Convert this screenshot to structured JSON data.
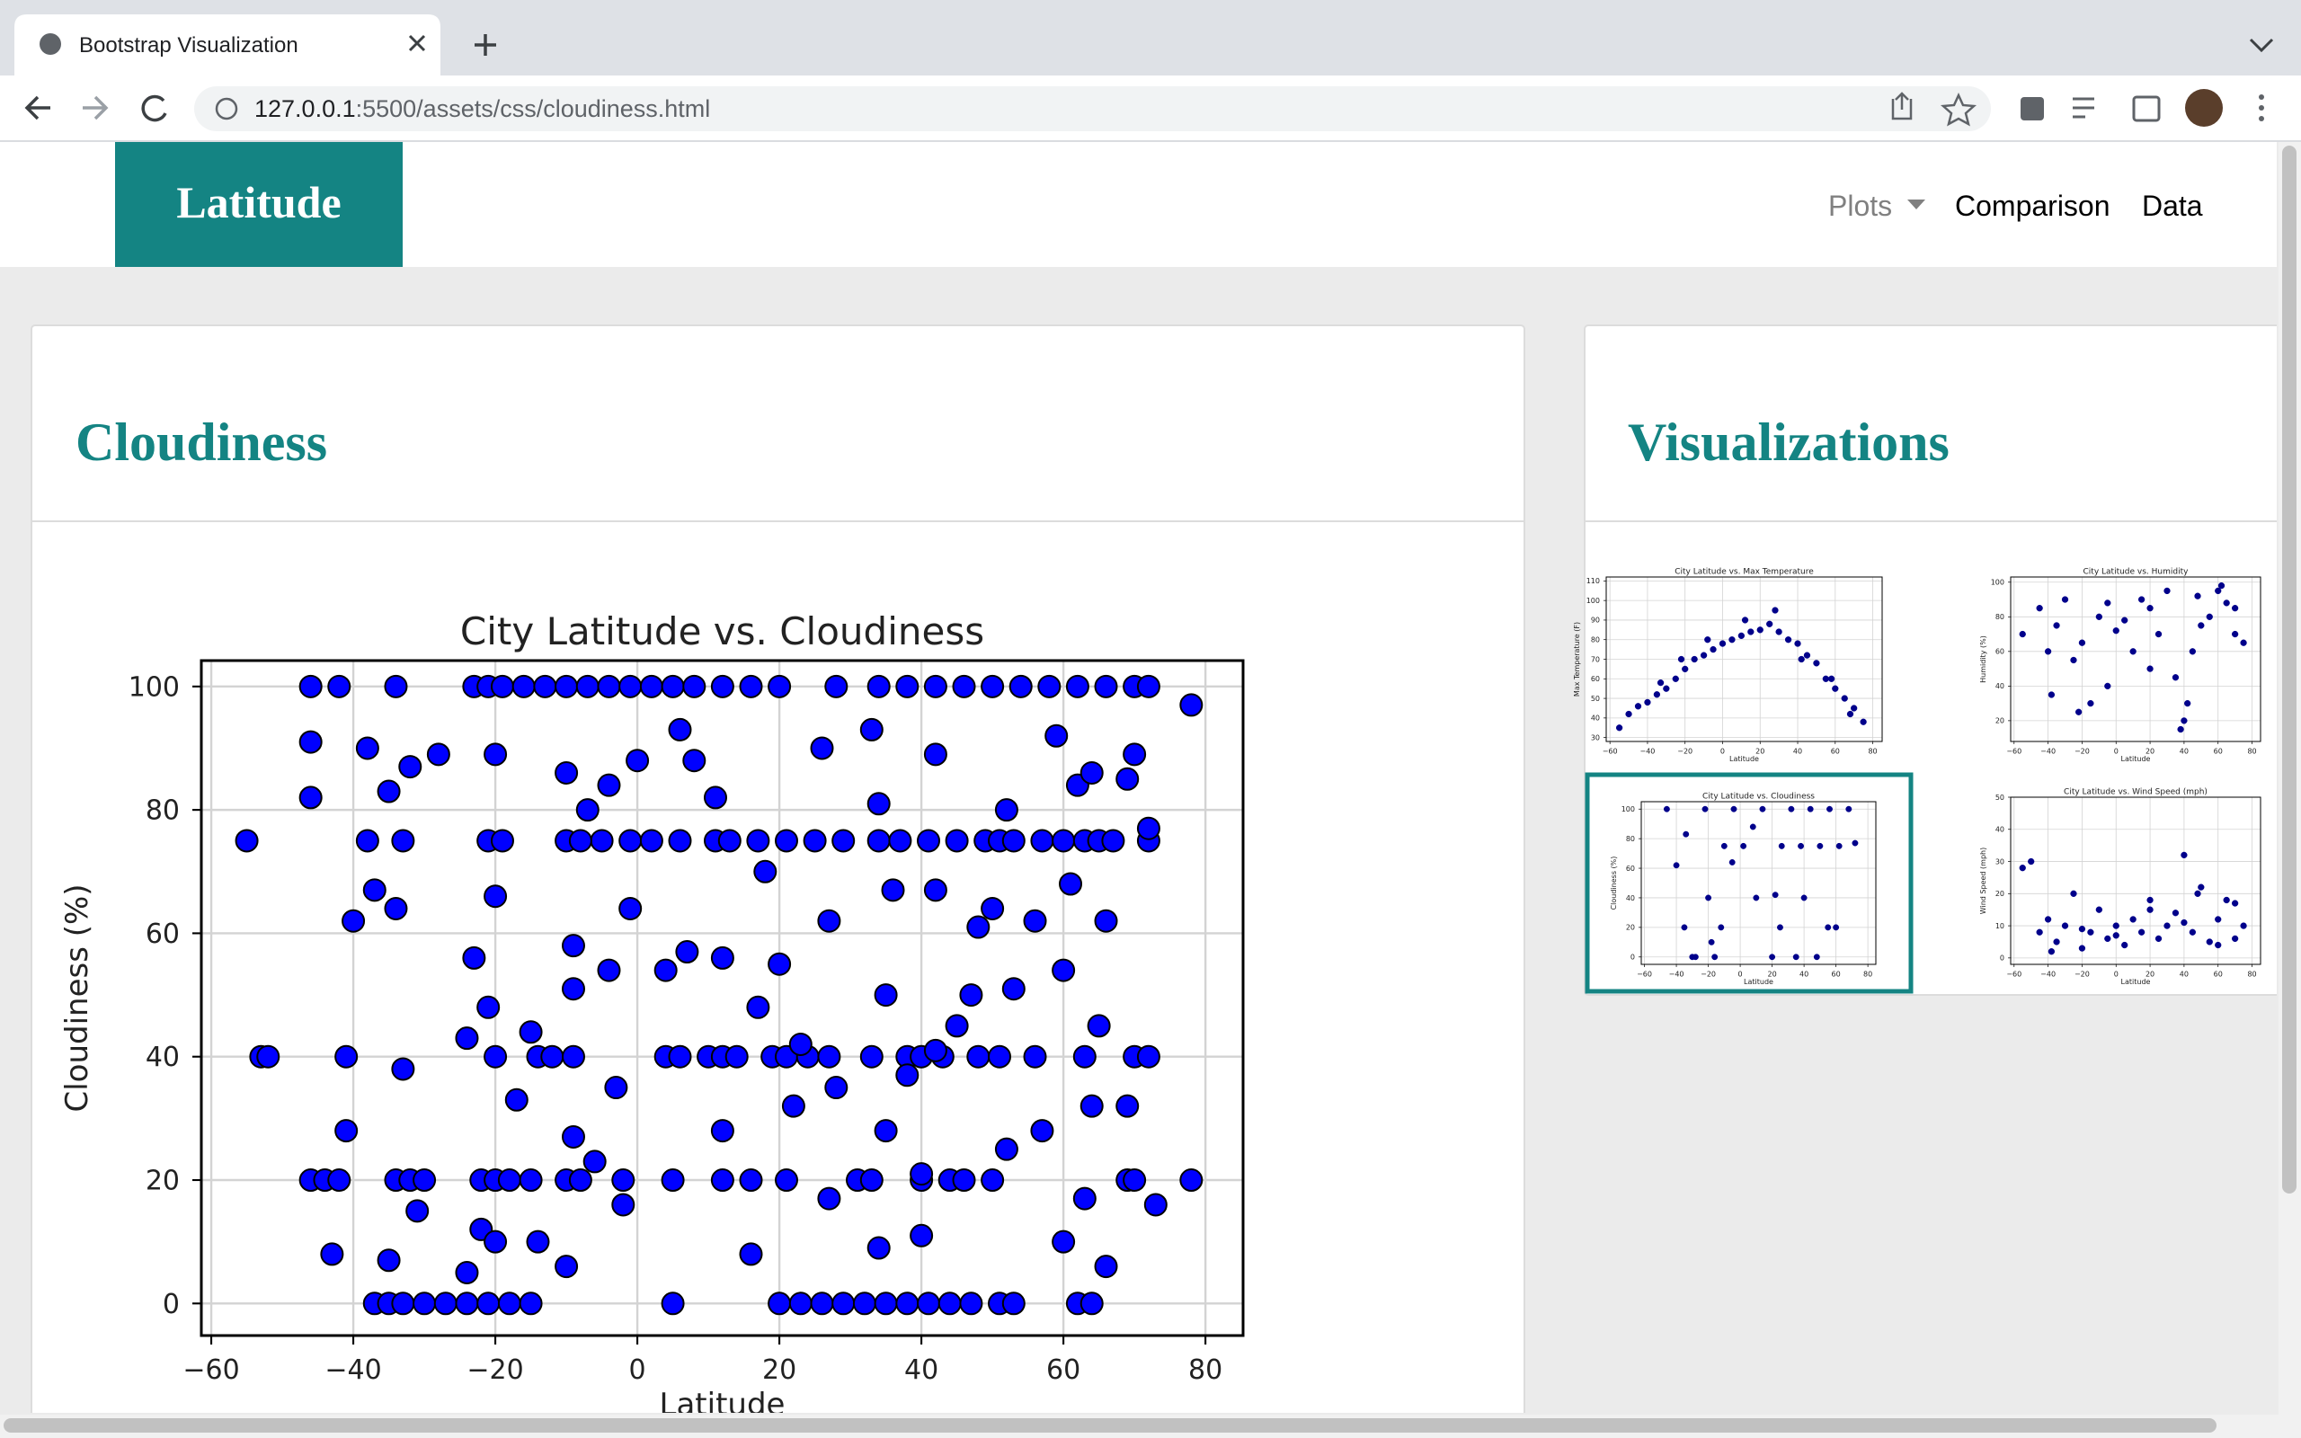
{
  "browser": {
    "tab_title": "Bootstrap Visualization",
    "url": {
      "host": "127.0.0.1",
      "path": ":5500/assets/css/cloudiness.html"
    }
  },
  "navbar": {
    "brand": "Latitude",
    "links": [
      "Plots",
      "Comparison",
      "Data"
    ]
  },
  "main_panel": {
    "heading": "Cloudiness"
  },
  "side_panel": {
    "heading": "Visualizations"
  },
  "chart_data": [
    {
      "type": "scatter",
      "title": "City Latitude vs. Cloudiness",
      "x_label": "Latitude",
      "y_label": "Cloudiness (%)",
      "color": "#0000ff",
      "grid": true,
      "xlim": [
        -61.4,
        85.3
      ],
      "ylim": [
        -5.2,
        104.2
      ],
      "xticks": [
        {
          "value": -60,
          "label": "−60"
        },
        {
          "value": -40,
          "label": "−40"
        },
        {
          "value": -20,
          "label": "−20"
        },
        0,
        20,
        40,
        60,
        80
      ],
      "yticks": [
        0,
        20,
        40,
        60,
        80,
        100
      ],
      "x": [
        -46,
        -42,
        -34,
        -23,
        -21,
        -19,
        -16,
        -13,
        -10,
        -7,
        -4,
        -1,
        2,
        5,
        8,
        12,
        16,
        20,
        28,
        34,
        38,
        42,
        46,
        50,
        54,
        58,
        62,
        66,
        70,
        72,
        -37,
        -35,
        -33,
        -30,
        -27,
        -24,
        -21,
        -18,
        -15,
        5,
        20,
        23,
        26,
        29,
        32,
        35,
        38,
        41,
        44,
        47,
        51,
        53,
        62,
        64,
        -55,
        -38,
        -33,
        -21,
        -19,
        -10,
        -5,
        -1,
        2,
        6,
        11,
        13,
        17,
        21,
        25,
        29,
        34,
        37,
        41,
        45,
        49,
        51,
        53,
        57,
        60,
        63,
        65,
        67,
        72,
        -8,
        -46,
        -44,
        -42,
        -34,
        -32,
        -30,
        -22,
        -20,
        -18,
        -15,
        -10,
        -8,
        -2,
        5,
        12,
        16,
        21,
        31,
        33,
        40,
        44,
        46,
        50,
        69,
        70,
        78,
        -53,
        -52,
        -41,
        -20,
        -14,
        -12,
        -9,
        4,
        6,
        10,
        12,
        14,
        19,
        21,
        24,
        27,
        33,
        38,
        40,
        43,
        48,
        51,
        56,
        63,
        70,
        72,
        -46,
        -46,
        -38,
        -35,
        -32,
        -28,
        -34,
        -37,
        -40,
        -41,
        -43,
        -35,
        -33,
        -31,
        -24,
        -23,
        -21,
        -20,
        -20,
        -17,
        -22,
        -20,
        -24,
        -15,
        -14,
        -10,
        -9,
        -9,
        -9,
        -6,
        -3,
        -4,
        -1,
        -2,
        -10,
        -7,
        -4,
        0,
        4,
        6,
        8,
        7,
        11,
        12,
        12,
        17,
        16,
        18,
        20,
        23,
        22,
        26,
        27,
        28,
        27,
        33,
        34,
        36,
        35,
        35,
        34,
        38,
        40,
        40,
        42,
        42,
        42,
        45,
        47,
        48,
        50,
        52,
        52,
        53,
        56,
        57,
        60,
        61,
        59,
        62,
        64,
        66,
        65,
        64,
        63,
        60,
        66,
        69,
        70,
        69,
        73,
        78,
        72
      ],
      "values": [
        100,
        100,
        100,
        100,
        100,
        100,
        100,
        100,
        100,
        100,
        100,
        100,
        100,
        100,
        100,
        100,
        100,
        100,
        100,
        100,
        100,
        100,
        100,
        100,
        100,
        100,
        100,
        100,
        100,
        100,
        0,
        0,
        0,
        0,
        0,
        0,
        0,
        0,
        0,
        0,
        0,
        0,
        0,
        0,
        0,
        0,
        0,
        0,
        0,
        0,
        0,
        0,
        0,
        0,
        75,
        75,
        75,
        75,
        75,
        75,
        75,
        75,
        75,
        75,
        75,
        75,
        75,
        75,
        75,
        75,
        75,
        75,
        75,
        75,
        75,
        75,
        75,
        75,
        75,
        75,
        75,
        75,
        75,
        75,
        20,
        20,
        20,
        20,
        20,
        20,
        20,
        20,
        20,
        20,
        20,
        20,
        20,
        20,
        20,
        20,
        20,
        20,
        20,
        20,
        20,
        20,
        20,
        20,
        20,
        20,
        40,
        40,
        40,
        40,
        40,
        40,
        40,
        40,
        40,
        40,
        40,
        40,
        40,
        40,
        40,
        40,
        40,
        40,
        40,
        40,
        40,
        40,
        40,
        40,
        40,
        40,
        91,
        82,
        90,
        83,
        87,
        89,
        64,
        67,
        62,
        28,
        8,
        7,
        38,
        15,
        43,
        56,
        48,
        89,
        66,
        33,
        12,
        10,
        5,
        44,
        10,
        6,
        27,
        51,
        58,
        23,
        35,
        54,
        64,
        16,
        86,
        80,
        84,
        88,
        54,
        93,
        88,
        57,
        82,
        56,
        28,
        48,
        8,
        70,
        55,
        42,
        32,
        90,
        62,
        35,
        17,
        93,
        81,
        67,
        50,
        28,
        9,
        37,
        21,
        11,
        89,
        67,
        41,
        45,
        50,
        61,
        64,
        25,
        80,
        51,
        62,
        28,
        54,
        68,
        92,
        84,
        86,
        62,
        45,
        32,
        17,
        10,
        6,
        85,
        89,
        32,
        16,
        97,
        77
      ]
    },
    {
      "type": "scatter",
      "title": "City Latitude vs. Max Temperature",
      "x_label": "Latitude",
      "y_label": "Max Temperature (F)",
      "color": "#00008b",
      "grid": true,
      "xlim": [
        -62,
        85
      ],
      "ylim": [
        28,
        112
      ],
      "xticks": [
        {
          "value": -60,
          "label": "−60"
        },
        {
          "value": -40,
          "label": "−40"
        },
        {
          "value": -20,
          "label": "−20"
        },
        0,
        20,
        40,
        60,
        80
      ],
      "yticks": [
        30,
        40,
        50,
        60,
        70,
        80,
        90,
        100,
        110
      ],
      "x": [
        -55,
        -50,
        -45,
        -40,
        -35,
        -30,
        -25,
        -20,
        -15,
        -10,
        -5,
        0,
        5,
        10,
        15,
        20,
        25,
        30,
        35,
        40,
        45,
        50,
        55,
        60,
        65,
        70,
        75,
        -33,
        -22,
        -8,
        12,
        28,
        42,
        58,
        68
      ],
      "values": [
        35,
        42,
        46,
        48,
        52,
        55,
        60,
        65,
        70,
        72,
        75,
        78,
        80,
        82,
        84,
        85,
        88,
        84,
        80,
        78,
        72,
        68,
        60,
        55,
        50,
        45,
        38,
        58,
        70,
        80,
        90,
        95,
        70,
        60,
        42
      ]
    },
    {
      "type": "scatter",
      "title": "City Latitude vs. Humidity",
      "x_label": "Latitude",
      "y_label": "Humidity (%)",
      "color": "#00008b",
      "grid": true,
      "xlim": [
        -62,
        85
      ],
      "ylim": [
        8,
        103
      ],
      "xticks": [
        {
          "value": -60,
          "label": "−60"
        },
        {
          "value": -40,
          "label": "−40"
        },
        {
          "value": -20,
          "label": "−20"
        },
        0,
        20,
        40,
        60,
        80
      ],
      "yticks": [
        20,
        40,
        60,
        80,
        100
      ],
      "x": [
        -55,
        -45,
        -40,
        -35,
        -30,
        -25,
        -20,
        -15,
        -10,
        -5,
        0,
        5,
        10,
        15,
        20,
        25,
        30,
        35,
        40,
        45,
        50,
        55,
        60,
        65,
        70,
        75,
        -38,
        -22,
        -5,
        20,
        38,
        42,
        48,
        62,
        70
      ],
      "values": [
        70,
        85,
        60,
        75,
        90,
        55,
        65,
        30,
        80,
        88,
        72,
        78,
        60,
        90,
        85,
        70,
        95,
        45,
        20,
        60,
        75,
        80,
        95,
        88,
        70,
        65,
        35,
        25,
        40,
        50,
        15,
        30,
        92,
        98,
        85
      ]
    },
    {
      "type": "scatter",
      "title": "City Latitude vs. Cloudiness",
      "x_label": "Latitude",
      "y_label": "Cloudiness (%)",
      "color": "#00008b",
      "grid": true,
      "xlim": [
        -62,
        85
      ],
      "ylim": [
        -5,
        105
      ],
      "xticks": [
        {
          "value": -60,
          "label": "−60"
        },
        {
          "value": -40,
          "label": "−40"
        },
        {
          "value": -20,
          "label": "−20"
        },
        0,
        20,
        40,
        60,
        80
      ],
      "yticks": [
        0,
        20,
        40,
        60,
        80,
        100
      ],
      "x": [
        -46,
        -40,
        -34,
        -28,
        -22,
        -16,
        -10,
        -4,
        2,
        8,
        14,
        20,
        26,
        32,
        38,
        44,
        50,
        56,
        62,
        68,
        72,
        -35,
        -20,
        -12,
        -5,
        10,
        22,
        35,
        48,
        60,
        -30,
        -18,
        25,
        40,
        55
      ],
      "values": [
        100,
        62,
        83,
        0,
        100,
        0,
        75,
        100,
        75,
        88,
        100,
        0,
        75,
        100,
        75,
        100,
        75,
        100,
        75,
        100,
        77,
        20,
        40,
        20,
        64,
        40,
        42,
        0,
        0,
        20,
        0,
        10,
        20,
        40,
        20
      ]
    },
    {
      "type": "scatter",
      "title": "City Latitude vs. Wind Speed (mph)",
      "x_label": "Latitude",
      "y_label": "Wind Speed (mph)",
      "color": "#00008b",
      "grid": true,
      "xlim": [
        -62,
        85
      ],
      "ylim": [
        -2,
        50
      ],
      "xticks": [
        {
          "value": -60,
          "label": "−60"
        },
        {
          "value": -40,
          "label": "−40"
        },
        {
          "value": -20,
          "label": "−20"
        },
        0,
        20,
        40,
        60,
        80
      ],
      "yticks": [
        0,
        10,
        20,
        30,
        40,
        50
      ],
      "x": [
        -55,
        -50,
        -45,
        -40,
        -35,
        -30,
        -25,
        -20,
        -15,
        -10,
        -5,
        0,
        5,
        10,
        15,
        20,
        25,
        30,
        35,
        40,
        45,
        50,
        55,
        60,
        65,
        70,
        75,
        -38,
        -20,
        0,
        20,
        40,
        48,
        60,
        70
      ],
      "values": [
        28,
        30,
        8,
        12,
        5,
        10,
        20,
        3,
        8,
        15,
        6,
        10,
        4,
        12,
        8,
        18,
        6,
        10,
        14,
        32,
        8,
        22,
        5,
        12,
        18,
        6,
        10,
        2,
        9,
        7,
        15,
        11,
        20,
        4,
        17
      ]
    }
  ]
}
